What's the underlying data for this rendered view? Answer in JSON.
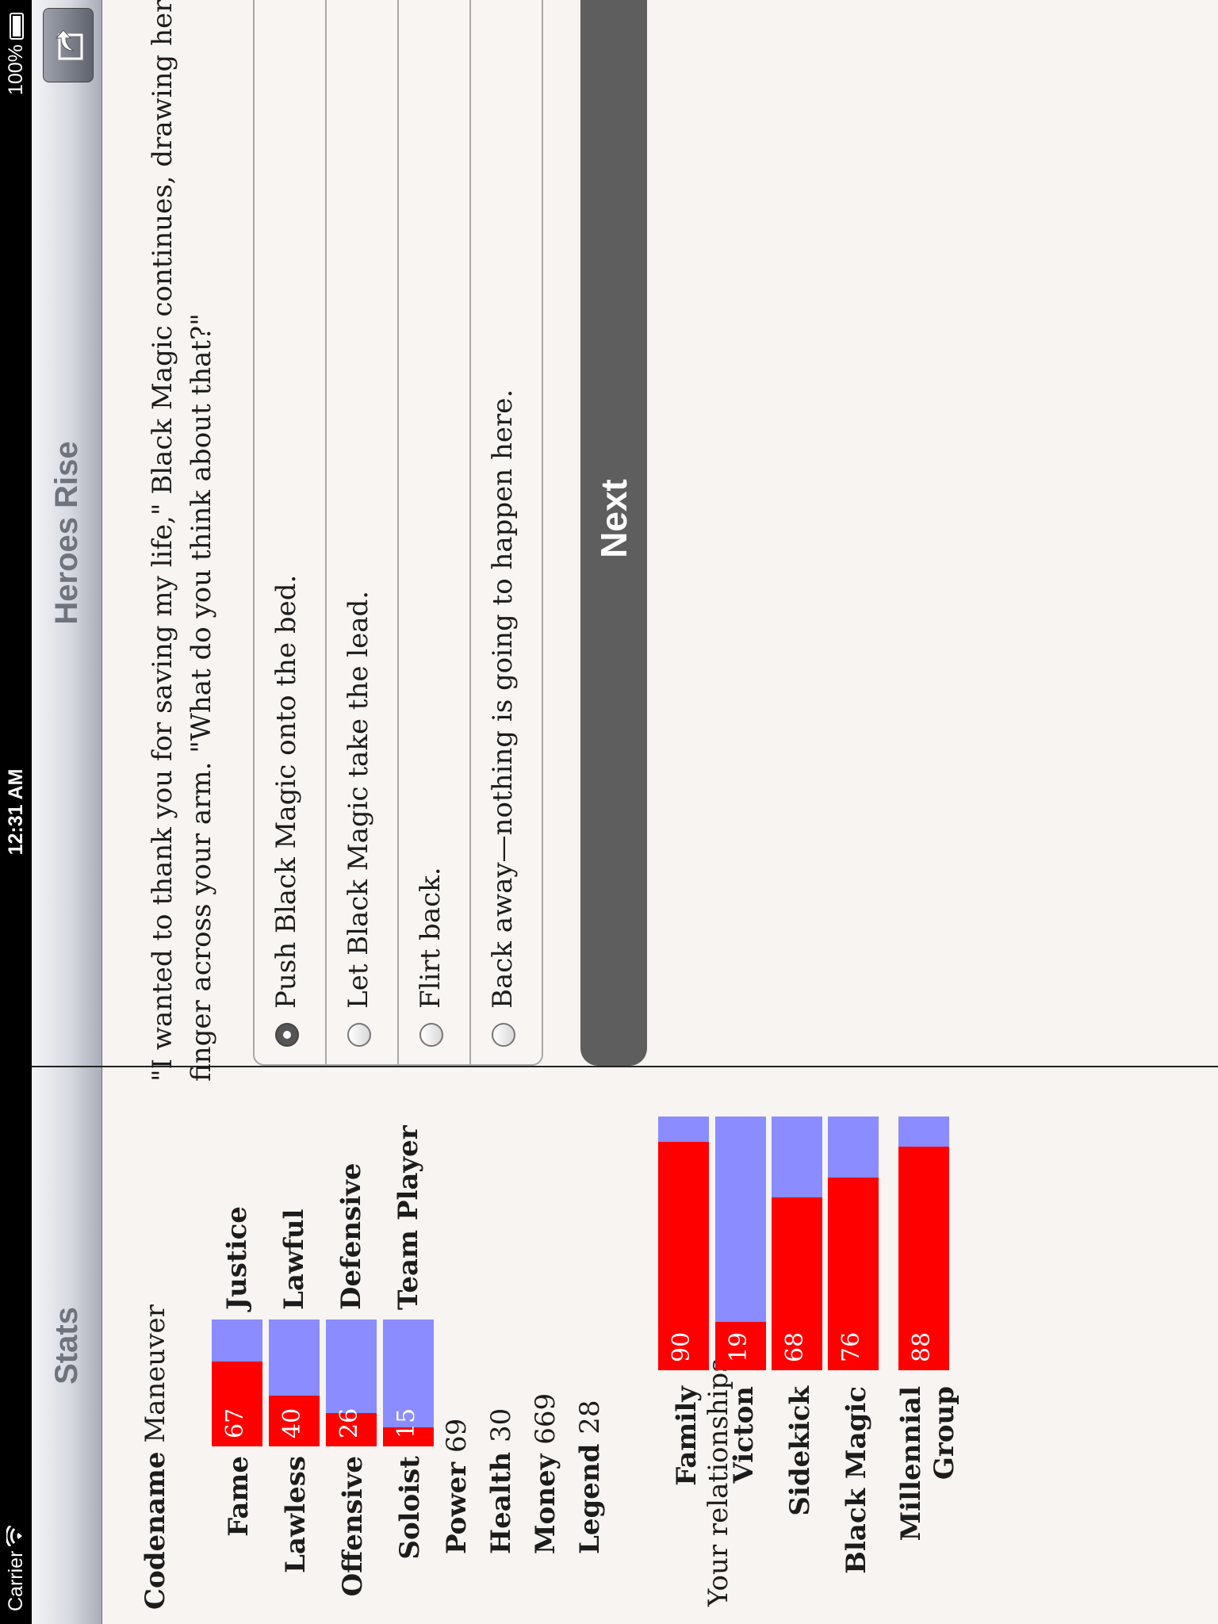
{
  "status_bar": {
    "carrier": "Carrier",
    "time": "12:31 AM",
    "battery": "100%"
  },
  "stats_pane": {
    "title": "Stats",
    "codename_label": "Codename",
    "codename_value": "Maneuver",
    "opposed_stats": [
      {
        "left": "Fame",
        "right": "Justice",
        "value": 67
      },
      {
        "left": "Lawless",
        "right": "Lawful",
        "value": 40
      },
      {
        "left": "Offensive",
        "right": "Defensive",
        "value": 26
      },
      {
        "left": "Soloist",
        "right": "Team Player",
        "value": 15
      }
    ],
    "plain_stats": [
      {
        "label": "Power",
        "value": "69"
      },
      {
        "label": "Health",
        "value": "30"
      },
      {
        "label": "Money",
        "value": "669"
      },
      {
        "label": "Legend",
        "value": "28"
      }
    ],
    "relationships_label": "Your relationships:",
    "relationships": [
      {
        "label": "Family",
        "value": 90
      },
      {
        "label": "Victon",
        "value": 19
      },
      {
        "label": "Sidekick",
        "value": 68
      },
      {
        "label": "Black Magic",
        "value": 76
      },
      {
        "label": "Millennial",
        "label2": "Group",
        "value": 88
      }
    ],
    "colors": {
      "fill": "#ff0000",
      "remainder": "#8a8cff"
    }
  },
  "main_pane": {
    "title": "Heroes Rise",
    "share_icon": "share-icon",
    "passage": "\"I wanted to thank you for saving my life,\" Black Magic continues, drawing her finger across your arm. \"What do you think about that?\"",
    "choices": [
      {
        "label": "Push Black Magic onto the bed.",
        "selected": true
      },
      {
        "label": "Let Black Magic take the lead.",
        "selected": false
      },
      {
        "label": "Flirt back.",
        "selected": false
      },
      {
        "label": "Back away—nothing is going to happen here.",
        "selected": false
      }
    ],
    "next_label": "Next",
    "next_color": "#5e5e5e"
  }
}
